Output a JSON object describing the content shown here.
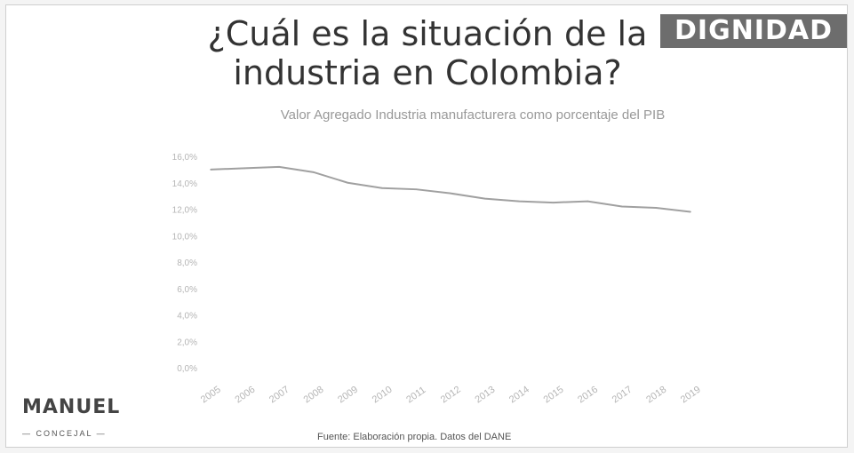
{
  "slide": {
    "title_line1": "¿Cuál es la situación de la",
    "title_line2": "industria en Colombia?",
    "badge": "DIGNIDAD",
    "logo_name": "MANUEL",
    "logo_sub": "— CONCEJAL —",
    "source": "Fuente: Elaboración propia. Datos del DANE"
  },
  "colors": {
    "line": "#a0a0a0",
    "badge_bg": "#6d6d6d",
    "tick_text": "#b5b5b5"
  },
  "chart_data": {
    "type": "line",
    "title": "Valor Agregado Industria manufacturera como porcentaje del PIB",
    "categories": [
      "2005",
      "2006",
      "2007",
      "2008",
      "2009",
      "2010",
      "2011",
      "2012",
      "2013",
      "2014",
      "2015",
      "2016",
      "2017",
      "2018",
      "2019"
    ],
    "series": [
      {
        "values": [
          15.0,
          15.1,
          15.2,
          14.8,
          14.0,
          13.6,
          13.5,
          13.2,
          12.8,
          12.6,
          12.5,
          12.6,
          12.2,
          12.1,
          11.8
        ]
      }
    ],
    "ylim": [
      0,
      16
    ],
    "yticks": [
      "0,0%",
      "2,0%",
      "4,0%",
      "6,0%",
      "8,0%",
      "10,0%",
      "12,0%",
      "14,0%",
      "16,0%"
    ],
    "ytick_values": [
      0,
      2,
      4,
      6,
      8,
      10,
      12,
      14,
      16
    ],
    "grid": false,
    "legend": "none"
  }
}
